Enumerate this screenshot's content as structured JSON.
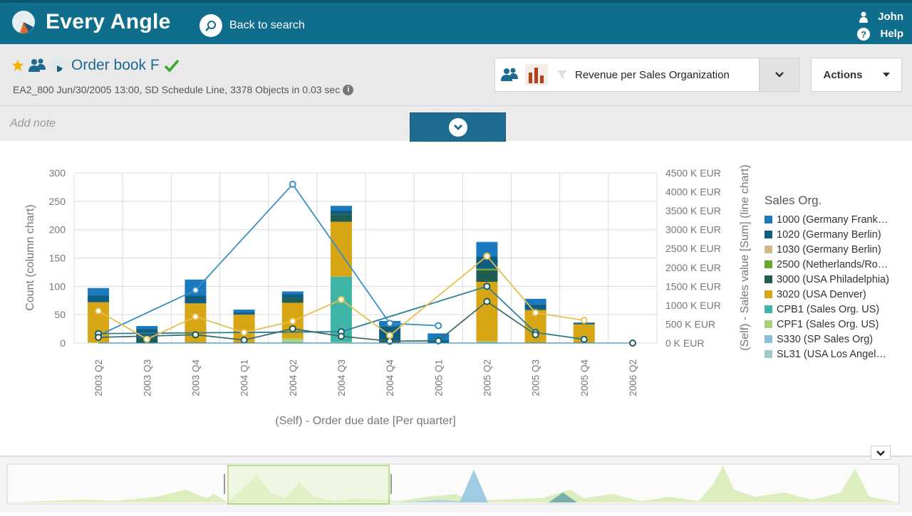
{
  "app": {
    "brand": "Every Angle",
    "back_label": "Back to search",
    "user_name": "John",
    "help_label": "Help"
  },
  "angle": {
    "title": "Order book F",
    "subtitle": "EA2_800 Jun/30/2005 13:00, SD Schedule Line, 3378 Objects in 0.03 sec",
    "display_name": "Revenue per Sales Organization",
    "actions_label": "Actions",
    "note_placeholder": "Add note"
  },
  "colors": {
    "topbar": "#0e6e8c",
    "title_link": "#1c6a93",
    "check": "#3aa531",
    "star": "#f0b400"
  },
  "chart_data": {
    "type": "bar",
    "xlabel": "(Self) - Order due date [Per quarter]",
    "ylabel": "Count (column chart)",
    "y2label": "(Self) - Sales value [Sum] (line chart)",
    "ylim": [
      0,
      300
    ],
    "y2lim": [
      0,
      4500
    ],
    "y_ticks": [
      "0",
      "50",
      "100",
      "150",
      "200",
      "250",
      "300"
    ],
    "y2_ticks": [
      "0 K EUR",
      "500 K EUR",
      "1000 K EUR",
      "1500 K EUR",
      "2000 K EUR",
      "2500 K EUR",
      "3000 K EUR",
      "3500 K EUR",
      "4000 K EUR",
      "4500 K EUR"
    ],
    "categories": [
      "2003 Q2",
      "2003 Q3",
      "2003 Q4",
      "2004 Q1",
      "2004 Q2",
      "2004 Q3",
      "2004 Q4",
      "2005 Q1",
      "2005 Q2",
      "2005 Q3",
      "2005 Q4",
      "2006 Q2"
    ],
    "legend_title": "Sales Org.",
    "series": [
      {
        "name": "1000 (Germany Frank…",
        "color": "#1b79be",
        "bars": [
          13,
          5,
          28,
          5,
          5,
          8,
          10,
          12,
          25,
          10,
          0,
          0
        ],
        "line": [
          200,
          0,
          1400,
          0,
          4200,
          0,
          520,
          460,
          0,
          0,
          0,
          0
        ]
      },
      {
        "name": "1020 (Germany Berlin)",
        "color": "#0f5e82",
        "bars": [
          12,
          17,
          14,
          3,
          7,
          7,
          25,
          5,
          22,
          8,
          3,
          0
        ],
        "line": [
          250,
          0,
          0,
          0,
          0,
          300,
          0,
          0,
          1500,
          280,
          100,
          0
        ]
      },
      {
        "name": "1030 (Germany Berlin)",
        "color": "#cbbc88",
        "bars": [
          0,
          0,
          0,
          0,
          0,
          0,
          0,
          0,
          0,
          0,
          0,
          0
        ],
        "line": [
          0,
          0,
          0,
          0,
          0,
          0,
          0,
          0,
          0,
          0,
          0,
          0
        ]
      },
      {
        "name": "2500 (Netherlands/Ro…",
        "color": "#6aa62e",
        "bars": [
          0,
          0,
          0,
          0,
          0,
          0,
          0,
          0,
          3,
          0,
          0,
          0
        ],
        "line": [
          0,
          0,
          0,
          0,
          0,
          0,
          0,
          0,
          0,
          0,
          0,
          0
        ]
      },
      {
        "name": "3000 (USA Philadelphia)",
        "color": "#1f5c52",
        "bars": [
          0,
          8,
          0,
          1,
          8,
          13,
          3,
          0,
          20,
          2,
          0,
          0
        ],
        "line": [
          150,
          0,
          220,
          80,
          380,
          180,
          50,
          60,
          1100,
          220,
          0,
          0
        ]
      },
      {
        "name": "3020 (USA Denver)",
        "color": "#d8a515",
        "bars": [
          71,
          0,
          70,
          50,
          63,
          97,
          1,
          0,
          105,
          58,
          33,
          0
        ],
        "line": [
          850,
          100,
          700,
          280,
          580,
          1150,
          200,
          0,
          2300,
          800,
          600,
          0
        ]
      },
      {
        "name": "CPB1 (Sales Org. US)",
        "color": "#3fb5a8",
        "bars": [
          0,
          0,
          0,
          0,
          0,
          115,
          0,
          0,
          0,
          0,
          0,
          0
        ],
        "line": [
          0,
          0,
          0,
          0,
          0,
          0,
          0,
          0,
          0,
          0,
          0,
          0
        ]
      },
      {
        "name": "CPF1 (Sales Org. US)",
        "color": "#a7d17a",
        "bars": [
          1,
          0,
          0,
          0,
          8,
          2,
          0,
          0,
          3,
          0,
          0,
          0
        ],
        "line": [
          0,
          0,
          0,
          0,
          0,
          0,
          0,
          0,
          0,
          0,
          0,
          0
        ]
      },
      {
        "name": "S330 (SP Sales Org)",
        "color": "#87c0d8",
        "bars": [
          0,
          0,
          0,
          0,
          0,
          0,
          0,
          0,
          1,
          0,
          0,
          0
        ],
        "line": [
          0,
          0,
          0,
          0,
          0,
          0,
          0,
          0,
          0,
          0,
          0,
          0
        ]
      },
      {
        "name": "SL31 (USA Los Angel…",
        "color": "#a2c8cb",
        "bars": [
          0,
          0,
          0,
          0,
          0,
          0,
          0,
          0,
          0,
          0,
          0,
          0
        ],
        "line": [
          0,
          0,
          0,
          0,
          0,
          0,
          0,
          0,
          0,
          0,
          0,
          0
        ]
      }
    ]
  }
}
